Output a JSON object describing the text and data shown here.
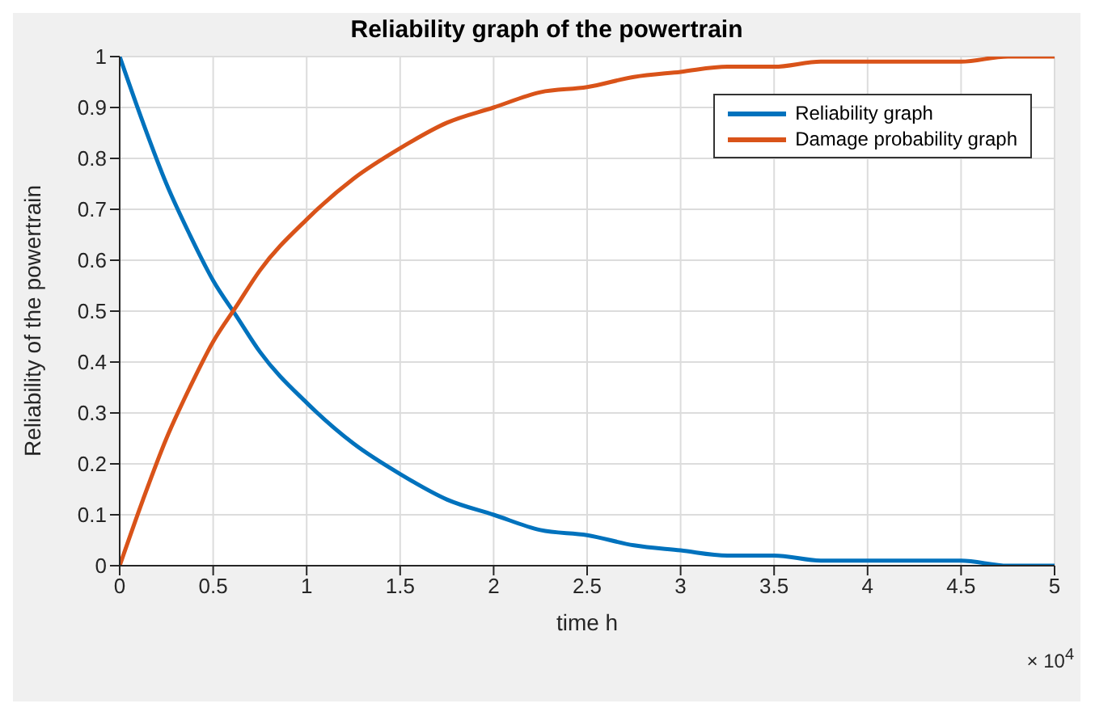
{
  "chart_data": {
    "type": "line",
    "title": "Reliability graph of the powertrain",
    "xlabel": "time h",
    "ylabel": "Reliability of the powertrain",
    "x": [
      0,
      0.125,
      0.25,
      0.375,
      0.5,
      0.625,
      0.75,
      1,
      1.25,
      1.5,
      1.75,
      2,
      2.25,
      2.5,
      2.75,
      3,
      3.25,
      3.5,
      3.75,
      4,
      4.25,
      4.5,
      4.75,
      5
    ],
    "series": [
      {
        "name": "Reliability graph",
        "color": "#0072bd",
        "values": [
          1,
          0.87,
          0.75,
          0.65,
          0.56,
          0.49,
          0.42,
          0.32,
          0.24,
          0.18,
          0.13,
          0.1,
          0.07,
          0.06,
          0.04,
          0.03,
          0.02,
          0.02,
          0.01,
          0.01,
          0.01,
          0.01,
          0,
          0
        ]
      },
      {
        "name": "Damage probability graph",
        "color": "#d95319",
        "values": [
          0,
          0.13,
          0.25,
          0.35,
          0.44,
          0.51,
          0.58,
          0.68,
          0.76,
          0.82,
          0.87,
          0.9,
          0.93,
          0.94,
          0.96,
          0.97,
          0.98,
          0.98,
          0.99,
          0.99,
          0.99,
          0.99,
          1,
          1
        ]
      }
    ],
    "xlim": [
      0,
      5
    ],
    "xticks": [
      0,
      0.5,
      1,
      1.5,
      2,
      2.5,
      3,
      3.5,
      4,
      4.5,
      5
    ],
    "ylim": [
      0,
      1
    ],
    "yticks": [
      0,
      0.1,
      0.2,
      0.3,
      0.4,
      0.5,
      0.6,
      0.7,
      0.8,
      0.9,
      1
    ],
    "annotations": [
      "× 10$^{4}$"
    ],
    "grid": true,
    "legend": "top right",
    "line_style": "solid",
    "marker": "none"
  }
}
